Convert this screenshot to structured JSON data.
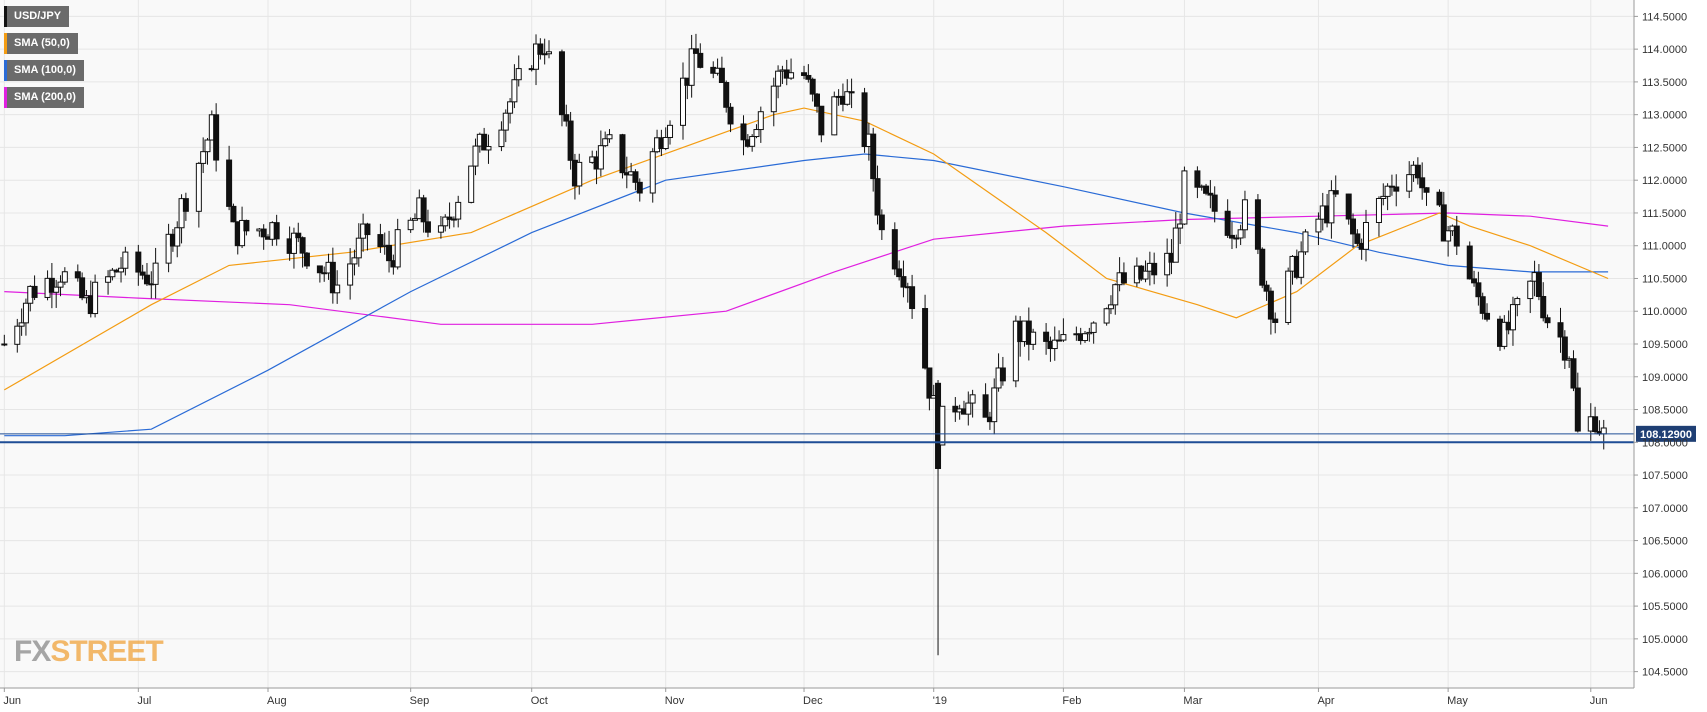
{
  "legend": [
    {
      "label": "USD/JPY",
      "color": "#111111"
    },
    {
      "label": "SMA (50,0)",
      "color": "#f39c12"
    },
    {
      "label": "SMA (100,0)",
      "color": "#2a6bd6"
    },
    {
      "label": "SMA (200,0)",
      "color": "#e020e0"
    }
  ],
  "logo": {
    "part1": "FX",
    "part2": "STREET"
  },
  "price_label": "108.12900",
  "colors": {
    "background": "#f9f9f9",
    "grid": "#e6e6e6",
    "bull": "#ffffff",
    "bear": "#111111",
    "hline": "#1f4e96",
    "price_box": "#1f3f74"
  },
  "chart_data": {
    "type": "candlestick",
    "symbol": "USD/JPY",
    "ylim": [
      104.25,
      114.75
    ],
    "y_ticks": [
      "104.5000",
      "105.0000",
      "105.5000",
      "106.0000",
      "106.5000",
      "107.0000",
      "107.5000",
      "108.0000",
      "108.5000",
      "109.0000",
      "109.5000",
      "110.0000",
      "110.5000",
      "111.0000",
      "111.5000",
      "112.0000",
      "112.5000",
      "113.0000",
      "113.5000",
      "114.0000",
      "114.5000"
    ],
    "x_ticks": [
      "Jun",
      "Jul",
      "Aug",
      "Sep",
      "Oct",
      "Nov",
      "Dec",
      "'19",
      "Feb",
      "Mar",
      "Apr",
      "May",
      "Jun"
    ],
    "grid": true,
    "last_price": 108.129,
    "horizontal_levels": [
      108.129,
      108.0
    ],
    "candle_keypoints": {
      "x": [
        "2018-06-01",
        "2018-06-07",
        "2018-06-14",
        "2018-06-20",
        "2018-06-28",
        "2018-07-06",
        "2018-07-12",
        "2018-07-19",
        "2018-07-24",
        "2018-08-03",
        "2018-08-10",
        "2018-08-17",
        "2018-08-24",
        "2018-08-29",
        "2018-09-05",
        "2018-09-10",
        "2018-09-17",
        "2018-09-26",
        "2018-10-01",
        "2018-10-04",
        "2018-10-11",
        "2018-10-19",
        "2018-10-26",
        "2018-11-01",
        "2018-11-08",
        "2018-11-14",
        "2018-11-19",
        "2018-11-28",
        "2018-12-03",
        "2018-12-07",
        "2018-12-12",
        "2018-12-18",
        "2018-12-21",
        "2018-12-27",
        "2019-01-03",
        "2019-01-08",
        "2019-01-14",
        "2019-01-21",
        "2019-01-29",
        "2019-02-01",
        "2019-02-08",
        "2019-02-13",
        "2019-02-19",
        "2019-02-26",
        "2019-03-01",
        "2019-03-07",
        "2019-03-12",
        "2019-03-15",
        "2019-03-22",
        "2019-03-26",
        "2019-04-01",
        "2019-04-05",
        "2019-04-10",
        "2019-04-18",
        "2019-04-24",
        "2019-04-26",
        "2019-05-03",
        "2019-05-07",
        "2019-05-14",
        "2019-05-21",
        "2019-05-24",
        "2019-05-29",
        "2019-05-31",
        "2019-06-04",
        "2019-06-06"
      ],
      "close": [
        109.5,
        110.3,
        110.6,
        110.1,
        110.7,
        110.5,
        111.6,
        112.8,
        111.2,
        111.3,
        110.9,
        110.4,
        111.2,
        110.8,
        111.5,
        111.1,
        112.3,
        113.2,
        113.9,
        114.1,
        112.1,
        112.5,
        111.9,
        112.9,
        113.9,
        113.4,
        112.6,
        113.7,
        113.6,
        112.8,
        113.4,
        112.5,
        111.2,
        110.5,
        108.2,
        108.7,
        108.3,
        109.7,
        109.4,
        109.5,
        109.9,
        110.4,
        110.5,
        110.8,
        111.9,
        111.6,
        111.3,
        111.5,
        109.9,
        110.6,
        111.4,
        111.7,
        111.0,
        112.0,
        112.2,
        111.6,
        111.1,
        110.3,
        109.6,
        110.5,
        109.9,
        109.4,
        108.1,
        108.4,
        108.1
      ]
    },
    "sma_50": {
      "x": [
        "2018-06-01",
        "2018-07-05",
        "2018-07-23",
        "2018-08-20",
        "2018-09-17",
        "2018-10-01",
        "2018-10-15",
        "2018-11-05",
        "2018-11-26",
        "2018-12-03",
        "2018-12-17",
        "2019-01-02",
        "2019-01-28",
        "2019-02-11",
        "2019-03-04",
        "2019-03-13",
        "2019-03-27",
        "2019-04-10",
        "2019-04-29",
        "2019-05-06",
        "2019-05-20",
        "2019-06-07"
      ],
      "y": [
        108.8,
        110.1,
        110.7,
        110.9,
        111.2,
        111.6,
        112.0,
        112.5,
        113.0,
        113.1,
        112.9,
        112.4,
        111.2,
        110.5,
        110.1,
        109.9,
        110.3,
        111.0,
        111.5,
        111.3,
        111.0,
        110.5
      ]
    },
    "sma_100": {
      "x": [
        "2018-06-01",
        "2018-06-15",
        "2018-07-05",
        "2018-08-01",
        "2018-09-03",
        "2018-10-01",
        "2018-11-01",
        "2018-12-03",
        "2018-12-17",
        "2019-01-02",
        "2019-02-01",
        "2019-03-01",
        "2019-03-27",
        "2019-04-15",
        "2019-05-01",
        "2019-05-20",
        "2019-06-07"
      ],
      "y": [
        108.1,
        108.1,
        108.2,
        109.1,
        110.3,
        111.2,
        112.0,
        112.3,
        112.4,
        112.3,
        111.9,
        111.5,
        111.2,
        110.9,
        110.7,
        110.6,
        110.6
      ]
    },
    "sma_200": {
      "x": [
        "2018-06-01",
        "2018-07-02",
        "2018-08-06",
        "2018-09-10",
        "2018-10-15",
        "2018-11-15",
        "2018-12-10",
        "2019-01-02",
        "2019-02-01",
        "2019-03-01",
        "2019-04-01",
        "2019-05-01",
        "2019-05-20",
        "2019-06-07"
      ],
      "y": [
        110.3,
        110.2,
        110.1,
        109.8,
        109.8,
        110.0,
        110.6,
        111.1,
        111.3,
        111.4,
        111.45,
        111.5,
        111.45,
        111.3
      ]
    }
  }
}
